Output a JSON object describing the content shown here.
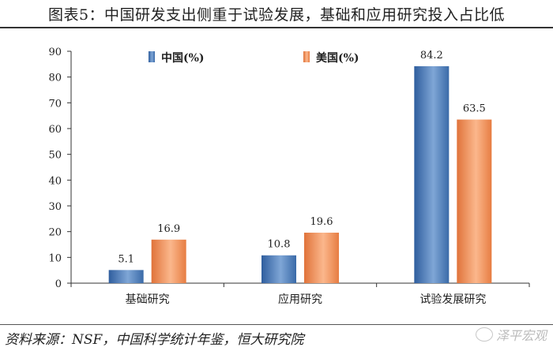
{
  "title": "图表5：中国研发支出侧重于试验发展，基础和应用研究投入占比低",
  "source": "资料来源：NSF，中国科学统计年鉴，恒大研究院",
  "watermark": "泽平宏观",
  "chart_data": {
    "type": "bar",
    "categories": [
      "基础研究",
      "应用研究",
      "试验发展研究"
    ],
    "series": [
      {
        "name": "中国(%)",
        "values": [
          5.1,
          10.8,
          84.2
        ],
        "color": "#3f6fb0"
      },
      {
        "name": "美国(%)",
        "values": [
          16.9,
          19.6,
          63.5
        ],
        "color": "#f08a4b"
      }
    ],
    "ylim": [
      0,
      90
    ],
    "yticks": [
      0,
      10,
      20,
      30,
      40,
      50,
      60,
      70,
      80,
      90
    ],
    "grid": false,
    "legend": "top-left"
  }
}
